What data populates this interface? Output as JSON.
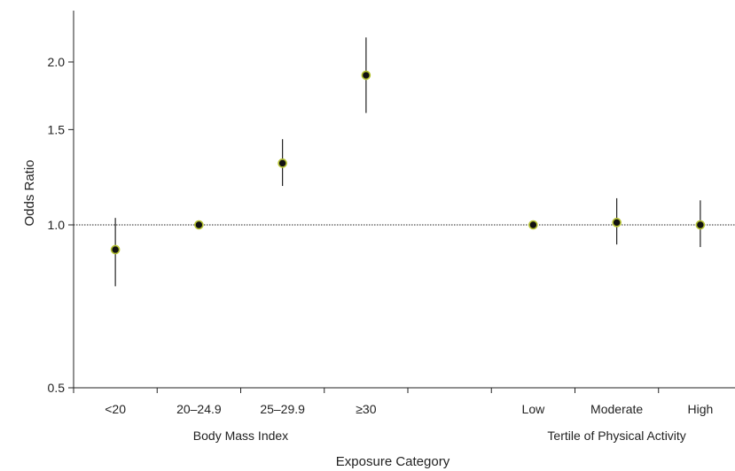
{
  "chart_data": {
    "type": "scatter",
    "variant": "forest-plot",
    "title": "",
    "xlabel": "Exposure Category",
    "ylabel": "Odds Ratio",
    "yscale": "log",
    "ylim": [
      0.5,
      2.5
    ],
    "yticks": [
      0.5,
      1.0,
      1.5,
      2.0
    ],
    "ytick_labels": [
      "0.5",
      "1.0",
      "1.5",
      "2.0"
    ],
    "reference_line": {
      "y": 1.0,
      "style": "dotted"
    },
    "grid": false,
    "legend": "none",
    "marker_color": "#111111",
    "marker_outline": "#b5c232",
    "categories": [
      "<20",
      "20–24.9",
      "25–29.9",
      "≥30",
      "",
      "Low",
      "Moderate",
      "High"
    ],
    "groups": [
      {
        "label": "Body Mass Index",
        "categories": [
          "<20",
          "20–24.9",
          "25–29.9",
          "≥30"
        ]
      },
      {
        "label": "Tertile of Physical Activity",
        "categories": [
          "Low",
          "Moderate",
          "High"
        ]
      }
    ],
    "points": [
      {
        "category": "<20",
        "or": 0.9,
        "ci_low": 0.77,
        "ci_high": 1.03
      },
      {
        "category": "20–24.9",
        "or": 1.0,
        "ci_low": 1.0,
        "ci_high": 1.0
      },
      {
        "category": "25–29.9",
        "or": 1.3,
        "ci_low": 1.18,
        "ci_high": 1.44
      },
      {
        "category": "≥30",
        "or": 1.89,
        "ci_low": 1.61,
        "ci_high": 2.22
      },
      {
        "category": "Low",
        "or": 1.0,
        "ci_low": 1.0,
        "ci_high": 1.0
      },
      {
        "category": "Moderate",
        "or": 1.01,
        "ci_low": 0.92,
        "ci_high": 1.12
      },
      {
        "category": "High",
        "or": 1.0,
        "ci_low": 0.91,
        "ci_high": 1.11
      }
    ]
  }
}
